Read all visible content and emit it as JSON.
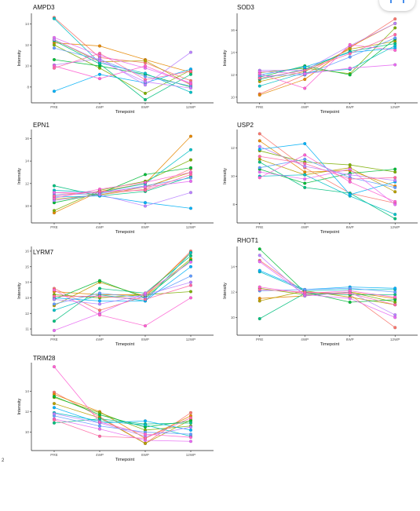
{
  "ui": {
    "expand_icon": "expand-icon",
    "footnote": "2",
    "accent": "#1a73e8"
  },
  "chart_data": [
    {
      "type": "line",
      "title": "AMPD3",
      "xlabel": "Timepoint",
      "ylabel": "Intensity",
      "categories": [
        "PRE",
        "4WP",
        "8WP",
        "12WP"
      ],
      "yticks": [
        8,
        10,
        12,
        14
      ],
      "ylim": [
        6.5,
        15
      ],
      "legend": "none",
      "grid": false,
      "series": [
        {
          "color": "#f8766d",
          "values": [
            14.6,
            10.8,
            10.3,
            8.6
          ]
        },
        {
          "color": "#e58700",
          "values": [
            12.2,
            11.9,
            10.6,
            9.4
          ]
        },
        {
          "color": "#b79f00",
          "values": [
            12.5,
            10.4,
            10.5,
            8.2
          ]
        },
        {
          "color": "#7cae00",
          "values": [
            12.0,
            9.8,
            7.4,
            9.6
          ]
        },
        {
          "color": "#00ba38",
          "values": [
            10.6,
            10.0,
            9.2,
            8.0
          ]
        },
        {
          "color": "#00bf7d",
          "values": [
            12.4,
            10.2,
            6.8,
            9.2
          ]
        },
        {
          "color": "#00bfc4",
          "values": [
            14.5,
            10.3,
            9.3,
            7.5
          ]
        },
        {
          "color": "#00b0f6",
          "values": [
            7.6,
            9.2,
            8.4,
            9.7
          ]
        },
        {
          "color": "#619cff",
          "values": [
            11.7,
            10.6,
            9.0,
            8.1
          ]
        },
        {
          "color": "#b983ff",
          "values": [
            10.1,
            10.7,
            8.2,
            11.3
          ]
        },
        {
          "color": "#e76bf3",
          "values": [
            12.7,
            11.0,
            9.8,
            8.4
          ]
        },
        {
          "color": "#fd61d1",
          "values": [
            10.0,
            8.8,
            10.0,
            8.3
          ]
        },
        {
          "color": "#ff67a4",
          "values": [
            9.8,
            11.2,
            8.7,
            9.5
          ]
        },
        {
          "color": "#c77cff",
          "values": [
            12.5,
            10.5,
            8.5,
            7.9
          ]
        }
      ]
    },
    {
      "type": "line",
      "title": "SOD3",
      "xlabel": "Timepoint",
      "ylabel": "Intensity",
      "categories": [
        "PRE",
        "4WP",
        "8WP",
        "12WP"
      ],
      "yticks": [
        10,
        12,
        14,
        16
      ],
      "ylim": [
        9.5,
        17.5
      ],
      "legend": "none",
      "grid": false,
      "series": [
        {
          "color": "#f8766d",
          "values": [
            10.3,
            12.0,
            14.4,
            17.0
          ]
        },
        {
          "color": "#e58700",
          "values": [
            10.2,
            11.6,
            14.5,
            16.6
          ]
        },
        {
          "color": "#b79f00",
          "values": [
            11.4,
            12.3,
            14.3,
            15.0
          ]
        },
        {
          "color": "#7cae00",
          "values": [
            12.2,
            12.6,
            12.1,
            16.2
          ]
        },
        {
          "color": "#00ba38",
          "values": [
            11.8,
            12.8,
            12.0,
            15.2
          ]
        },
        {
          "color": "#00bf7d",
          "values": [
            11.6,
            12.5,
            14.1,
            14.8
          ]
        },
        {
          "color": "#00bfc4",
          "values": [
            11.0,
            12.2,
            12.5,
            14.6
          ]
        },
        {
          "color": "#00b0f6",
          "values": [
            12.0,
            12.7,
            14.0,
            14.4
          ]
        },
        {
          "color": "#619cff",
          "values": [
            11.9,
            12.0,
            13.6,
            15.3
          ]
        },
        {
          "color": "#b983ff",
          "values": [
            12.4,
            12.4,
            14.6,
            16.6
          ]
        },
        {
          "color": "#e76bf3",
          "values": [
            12.3,
            12.1,
            12.6,
            12.9
          ]
        },
        {
          "color": "#fd61d1",
          "values": [
            12.1,
            10.8,
            14.7,
            14.2
          ]
        },
        {
          "color": "#ff67a4",
          "values": [
            11.7,
            12.4,
            13.9,
            15.6
          ]
        }
      ]
    },
    {
      "type": "line",
      "title": "EPN1",
      "xlabel": "Timepoint",
      "ylabel": "Intensity",
      "categories": [
        "PRE",
        "4WP",
        "8WP",
        "12WP"
      ],
      "yticks": [
        10,
        12,
        14,
        16
      ],
      "ylim": [
        8.5,
        16.8
      ],
      "legend": "none",
      "grid": false,
      "series": [
        {
          "color": "#f8766d",
          "values": [
            11.2,
            11.0,
            11.5,
            13.3
          ]
        },
        {
          "color": "#e58700",
          "values": [
            9.4,
            11.3,
            12.0,
            16.2
          ]
        },
        {
          "color": "#b79f00",
          "values": [
            10.6,
            11.0,
            11.7,
            13.0
          ]
        },
        {
          "color": "#7cae00",
          "values": [
            9.6,
            11.4,
            12.2,
            14.1
          ]
        },
        {
          "color": "#00ba38",
          "values": [
            10.3,
            11.1,
            12.8,
            13.4
          ]
        },
        {
          "color": "#00bf7d",
          "values": [
            11.8,
            10.9,
            11.3,
            12.6
          ]
        },
        {
          "color": "#00bfc4",
          "values": [
            11.4,
            11.2,
            12.0,
            15.0
          ]
        },
        {
          "color": "#00b0f6",
          "values": [
            10.8,
            10.9,
            10.3,
            9.8
          ]
        },
        {
          "color": "#619cff",
          "values": [
            11.0,
            11.1,
            11.8,
            12.5
          ]
        },
        {
          "color": "#b983ff",
          "values": [
            10.5,
            11.0,
            10.0,
            11.2
          ]
        },
        {
          "color": "#e76bf3",
          "values": [
            11.2,
            11.2,
            11.7,
            12.2
          ]
        },
        {
          "color": "#fd61d1",
          "values": [
            10.7,
            11.5,
            12.1,
            13.0
          ]
        },
        {
          "color": "#ff67a4",
          "values": [
            10.9,
            11.3,
            11.4,
            12.8
          ]
        }
      ]
    },
    {
      "type": "line",
      "title": "USP2",
      "xlabel": "Timepoint",
      "ylabel": "Intensity",
      "categories": [
        "PRE",
        "4WP",
        "8WP",
        "12WP"
      ],
      "yticks": [
        8,
        10,
        12
      ],
      "ylim": [
        6.7,
        13.3
      ],
      "legend": "none",
      "grid": false,
      "series": [
        {
          "color": "#f8766d",
          "values": [
            13.0,
            10.6,
            8.8,
            8.1
          ]
        },
        {
          "color": "#e58700",
          "values": [
            12.5,
            10.3,
            10.4,
            9.3
          ]
        },
        {
          "color": "#b79f00",
          "values": [
            11.2,
            10.1,
            10.6,
            8.9
          ]
        },
        {
          "color": "#7cae00",
          "values": [
            11.8,
            11.0,
            10.8,
            10.3
          ]
        },
        {
          "color": "#00ba38",
          "values": [
            10.5,
            9.5,
            10.2,
            10.5
          ]
        },
        {
          "color": "#00bf7d",
          "values": [
            11.0,
            9.2,
            8.8,
            7.0
          ]
        },
        {
          "color": "#00bfc4",
          "values": [
            10.0,
            10.1,
            8.6,
            7.3
          ]
        },
        {
          "color": "#00b0f6",
          "values": [
            11.9,
            12.3,
            8.7,
            9.6
          ]
        },
        {
          "color": "#619cff",
          "values": [
            10.6,
            11.2,
            9.9,
            9.2
          ]
        },
        {
          "color": "#b983ff",
          "values": [
            12.1,
            10.7,
            10.1,
            9.7
          ]
        },
        {
          "color": "#e76bf3",
          "values": [
            10.3,
            9.8,
            10.5,
            8.0
          ]
        },
        {
          "color": "#fd61d1",
          "values": [
            9.9,
            11.5,
            9.6,
            8.2
          ]
        },
        {
          "color": "#ff67a4",
          "values": [
            11.4,
            10.9,
            9.8,
            9.9
          ]
        }
      ]
    },
    {
      "type": "line",
      "title": "LYRM7",
      "xlabel": "Timepoint",
      "ylabel": "Intensity",
      "categories": [
        "PRE",
        "4WP",
        "8WP",
        "12WP"
      ],
      "yticks": [
        11,
        12,
        13,
        14,
        15,
        16
      ],
      "ylim": [
        10.6,
        16.3
      ],
      "legend": "none",
      "grid": false,
      "series": [
        {
          "color": "#f8766d",
          "values": [
            13.6,
            12.2,
            13.1,
            16.0
          ]
        },
        {
          "color": "#e58700",
          "values": [
            13.4,
            13.2,
            13.2,
            15.9
          ]
        },
        {
          "color": "#b79f00",
          "values": [
            12.5,
            14.0,
            13.1,
            15.5
          ]
        },
        {
          "color": "#7cae00",
          "values": [
            13.2,
            13.0,
            13.2,
            13.4
          ]
        },
        {
          "color": "#00ba38",
          "values": [
            12.9,
            14.1,
            13.0,
            15.4
          ]
        },
        {
          "color": "#00bf7d",
          "values": [
            11.5,
            13.6,
            13.3,
            15.7
          ]
        },
        {
          "color": "#00bfc4",
          "values": [
            12.2,
            13.2,
            12.8,
            15.9
          ]
        },
        {
          "color": "#00b0f6",
          "values": [
            13.0,
            12.8,
            12.8,
            15.0
          ]
        },
        {
          "color": "#619cff",
          "values": [
            12.6,
            13.3,
            13.0,
            14.4
          ]
        },
        {
          "color": "#b983ff",
          "values": [
            12.9,
            12.6,
            13.2,
            14.0
          ]
        },
        {
          "color": "#e76bf3",
          "values": [
            10.9,
            12.0,
            13.3,
            15.3
          ]
        },
        {
          "color": "#fd61d1",
          "values": [
            13.5,
            11.9,
            11.2,
            13.0
          ]
        },
        {
          "color": "#ff67a4",
          "values": [
            13.1,
            13.1,
            12.9,
            13.8
          ]
        }
      ]
    },
    {
      "type": "line",
      "title": "RHOT1",
      "xlabel": "Timepoint",
      "ylabel": "Intensity",
      "categories": [
        "PRE",
        "4WP",
        "8WP",
        "12WP"
      ],
      "yticks": [
        10,
        12,
        14
      ],
      "ylim": [
        8.6,
        15.6
      ],
      "legend": "none",
      "grid": false,
      "series": [
        {
          "color": "#f8766d",
          "values": [
            14.5,
            12.0,
            11.8,
            9.2
          ]
        },
        {
          "color": "#e58700",
          "values": [
            11.5,
            11.7,
            12.0,
            11.5
          ]
        },
        {
          "color": "#b79f00",
          "values": [
            11.3,
            12.1,
            11.6,
            11.0
          ]
        },
        {
          "color": "#7cae00",
          "values": [
            12.3,
            11.8,
            12.0,
            11.2
          ]
        },
        {
          "color": "#00ba38",
          "values": [
            15.4,
            12.0,
            11.2,
            11.4
          ]
        },
        {
          "color": "#00bf7d",
          "values": [
            9.9,
            11.9,
            11.8,
            11.8
          ]
        },
        {
          "color": "#00bfc4",
          "values": [
            13.6,
            12.1,
            12.2,
            12.2
          ]
        },
        {
          "color": "#00b0f6",
          "values": [
            13.7,
            12.2,
            12.4,
            12.3
          ]
        },
        {
          "color": "#619cff",
          "values": [
            12.1,
            12.2,
            12.3,
            12.0
          ]
        },
        {
          "color": "#b983ff",
          "values": [
            14.9,
            11.7,
            12.0,
            10.2
          ]
        },
        {
          "color": "#e76bf3",
          "values": [
            14.4,
            11.8,
            11.5,
            10.0
          ]
        },
        {
          "color": "#fd61d1",
          "values": [
            12.4,
            11.9,
            12.1,
            11.6
          ]
        },
        {
          "color": "#ff67a4",
          "values": [
            12.2,
            12.0,
            11.9,
            11.0
          ]
        }
      ]
    },
    {
      "type": "line",
      "title": "TRIM28",
      "xlabel": "Timepoint",
      "ylabel": "Intensity",
      "categories": [
        "PRE",
        "4WP",
        "8WP",
        "12WP"
      ],
      "yticks": [
        10,
        12,
        14
      ],
      "ylim": [
        8.2,
        16.8
      ],
      "legend": "none",
      "grid": false,
      "series": [
        {
          "color": "#f8766d",
          "values": [
            13.9,
            11.5,
            8.9,
            11.9
          ]
        },
        {
          "color": "#e58700",
          "values": [
            13.7,
            12.0,
            9.4,
            11.6
          ]
        },
        {
          "color": "#b79f00",
          "values": [
            12.8,
            11.4,
            8.9,
            11.2
          ]
        },
        {
          "color": "#7cae00",
          "values": [
            13.4,
            11.9,
            10.2,
            10.6
          ]
        },
        {
          "color": "#00ba38",
          "values": [
            13.5,
            11.7,
            10.5,
            11.1
          ]
        },
        {
          "color": "#00bf7d",
          "values": [
            10.9,
            11.3,
            10.8,
            10.9
          ]
        },
        {
          "color": "#00bfc4",
          "values": [
            11.9,
            11.1,
            10.7,
            9.6
          ]
        },
        {
          "color": "#00b0f6",
          "values": [
            12.4,
            10.9,
            11.1,
            10.2
          ]
        },
        {
          "color": "#619cff",
          "values": [
            11.6,
            10.6,
            10.0,
            9.8
          ]
        },
        {
          "color": "#b983ff",
          "values": [
            11.8,
            10.9,
            9.6,
            10.5
          ]
        },
        {
          "color": "#e76bf3",
          "values": [
            11.3,
            10.3,
            9.2,
            9.1
          ]
        },
        {
          "color": "#fd61d1",
          "values": [
            16.4,
            11.0,
            9.8,
            9.5
          ]
        },
        {
          "color": "#ff67a4",
          "values": [
            11.2,
            9.6,
            9.4,
            11.4
          ]
        }
      ]
    }
  ]
}
